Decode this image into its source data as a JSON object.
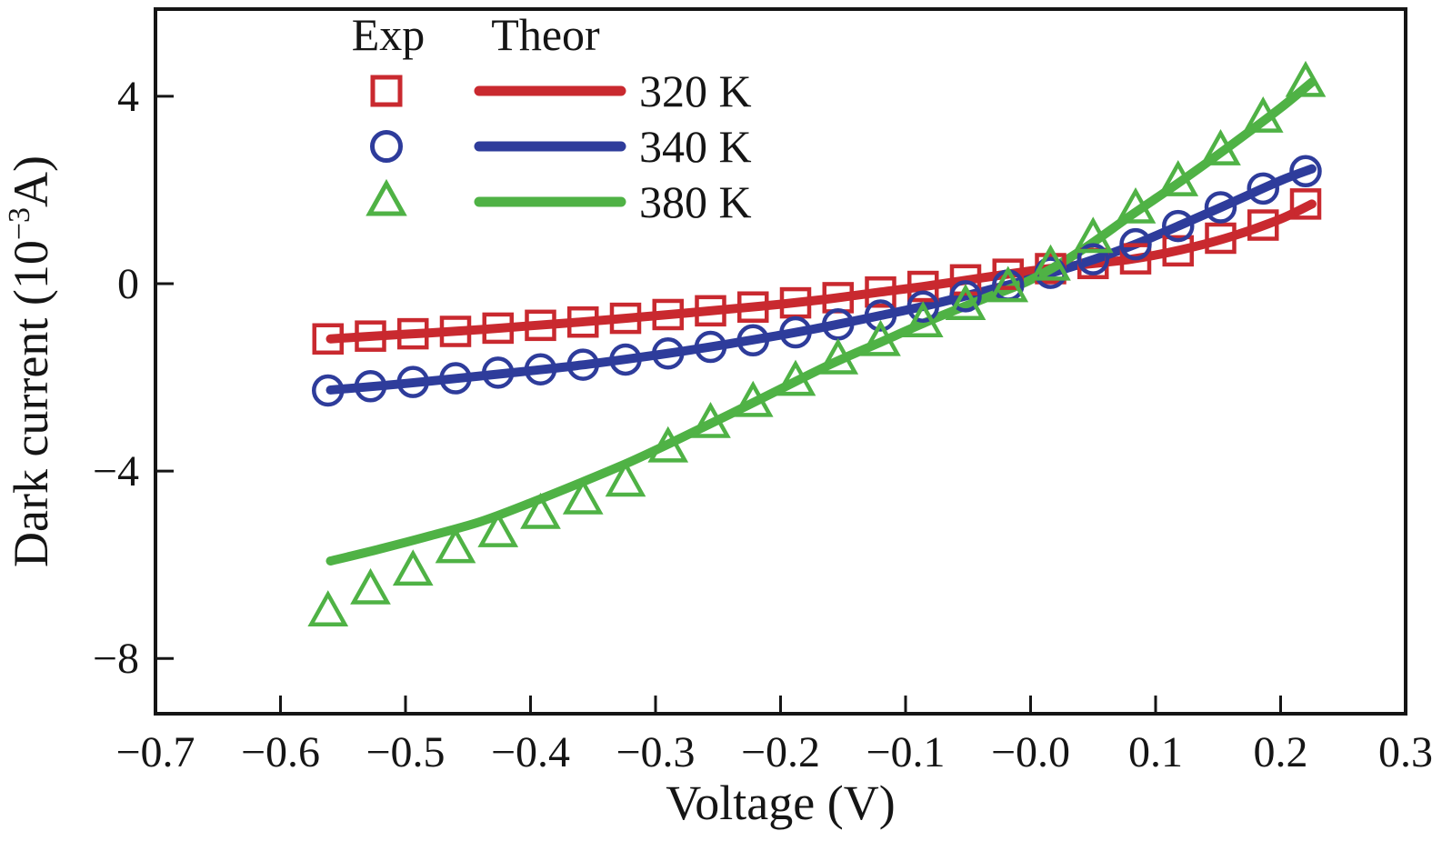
{
  "figure": {
    "background": "#ffffff",
    "axis_color": "#151515"
  },
  "chart_data": {
    "type": "line",
    "title": "",
    "xlabel": "Voltage (V)",
    "ylabel_prefix": "Dark current (10",
    "ylabel_sup": "−3",
    "ylabel_suffix": "A)",
    "xlim": [
      -0.7,
      0.3
    ],
    "ylim": [
      -9.18,
      5.86
    ],
    "grid": false,
    "x_ticks": [
      -0.7,
      -0.6,
      -0.5,
      -0.4,
      -0.3,
      -0.2,
      -0.1,
      0.0,
      0.1,
      0.2,
      0.3
    ],
    "x_tick_labels": [
      "−0.7",
      "−0.6",
      "−0.5",
      "−0.4",
      "−0.3",
      "−0.2",
      "−0.1",
      "−0.0",
      "0.1",
      "0.2",
      "0.3"
    ],
    "y_ticks": [
      4,
      0,
      -4,
      -8
    ],
    "y_tick_labels": [
      "4",
      "0",
      "−4",
      "−8"
    ],
    "legend": {
      "position": "upper-left",
      "exp_header": "Exp",
      "theor_header": "Theor",
      "entries": [
        {
          "label": "320 K",
          "marker": "square",
          "color": "#c9292f"
        },
        {
          "label": "340 K",
          "marker": "circle",
          "color": "#2e3c9b"
        },
        {
          "label": "380 K",
          "marker": "triangle",
          "color": "#4fb245"
        }
      ]
    },
    "series": [
      {
        "name": "320 K theory",
        "kind": "line",
        "color": "#c9292f",
        "x": [
          -0.56,
          -0.52,
          -0.48,
          -0.44,
          -0.4,
          -0.36,
          -0.32,
          -0.28,
          -0.24,
          -0.2,
          -0.16,
          -0.12,
          -0.08,
          -0.04,
          0.0,
          0.04,
          0.08,
          0.12,
          0.16,
          0.2,
          0.225
        ],
        "y": [
          -1.18,
          -1.11,
          -1.05,
          -0.98,
          -0.9,
          -0.82,
          -0.73,
          -0.64,
          -0.54,
          -0.44,
          -0.32,
          -0.18,
          -0.04,
          0.12,
          0.27,
          0.4,
          0.52,
          0.72,
          1.0,
          1.38,
          1.7
        ]
      },
      {
        "name": "340 K theory",
        "kind": "line",
        "color": "#2e3c9b",
        "x": [
          -0.56,
          -0.52,
          -0.48,
          -0.44,
          -0.4,
          -0.36,
          -0.32,
          -0.28,
          -0.24,
          -0.2,
          -0.16,
          -0.12,
          -0.08,
          -0.04,
          0.0,
          0.04,
          0.08,
          0.12,
          0.16,
          0.2,
          0.225
        ],
        "y": [
          -2.27,
          -2.18,
          -2.08,
          -1.97,
          -1.86,
          -1.74,
          -1.6,
          -1.45,
          -1.28,
          -1.1,
          -0.9,
          -0.68,
          -0.45,
          -0.18,
          0.1,
          0.42,
          0.8,
          1.25,
          1.72,
          2.2,
          2.45
        ]
      },
      {
        "name": "380 K theory",
        "kind": "line",
        "color": "#4fb245",
        "x": [
          -0.56,
          -0.52,
          -0.48,
          -0.44,
          -0.4,
          -0.36,
          -0.32,
          -0.28,
          -0.24,
          -0.2,
          -0.16,
          -0.12,
          -0.08,
          -0.04,
          0.0,
          0.04,
          0.08,
          0.12,
          0.16,
          0.2,
          0.225
        ],
        "y": [
          -5.92,
          -5.66,
          -5.38,
          -5.08,
          -4.68,
          -4.25,
          -3.8,
          -3.3,
          -2.78,
          -2.25,
          -1.72,
          -1.25,
          -0.78,
          -0.35,
          0.08,
          0.7,
          1.45,
          2.18,
          2.95,
          3.75,
          4.3
        ]
      },
      {
        "name": "320 K exp",
        "kind": "markers",
        "marker": "square",
        "color": "#c9292f",
        "x": [
          -0.562,
          -0.528,
          -0.494,
          -0.46,
          -0.426,
          -0.392,
          -0.358,
          -0.324,
          -0.29,
          -0.256,
          -0.222,
          -0.188,
          -0.154,
          -0.12,
          -0.086,
          -0.052,
          -0.018,
          0.016,
          0.05,
          0.084,
          0.118,
          0.152,
          0.186,
          0.22
        ],
        "y": [
          -1.18,
          -1.12,
          -1.07,
          -1.02,
          -0.95,
          -0.89,
          -0.82,
          -0.74,
          -0.66,
          -0.58,
          -0.5,
          -0.41,
          -0.3,
          -0.18,
          -0.06,
          0.08,
          0.2,
          0.32,
          0.43,
          0.53,
          0.7,
          0.97,
          1.25,
          1.7
        ]
      },
      {
        "name": "340 K exp",
        "kind": "markers",
        "marker": "circle",
        "color": "#2e3c9b",
        "x": [
          -0.562,
          -0.528,
          -0.494,
          -0.46,
          -0.426,
          -0.392,
          -0.358,
          -0.324,
          -0.29,
          -0.256,
          -0.222,
          -0.188,
          -0.154,
          -0.12,
          -0.086,
          -0.052,
          -0.018,
          0.016,
          0.05,
          0.084,
          0.118,
          0.152,
          0.186,
          0.22
        ],
        "y": [
          -2.28,
          -2.19,
          -2.1,
          -2.02,
          -1.9,
          -1.83,
          -1.73,
          -1.62,
          -1.49,
          -1.35,
          -1.21,
          -1.04,
          -0.87,
          -0.68,
          -0.49,
          -0.27,
          -0.04,
          0.23,
          0.52,
          0.84,
          1.23,
          1.63,
          2.03,
          2.4
        ]
      },
      {
        "name": "380 K exp",
        "kind": "markers",
        "marker": "triangle",
        "color": "#4fb245",
        "x": [
          -0.562,
          -0.528,
          -0.494,
          -0.46,
          -0.426,
          -0.392,
          -0.358,
          -0.324,
          -0.29,
          -0.256,
          -0.222,
          -0.188,
          -0.154,
          -0.12,
          -0.086,
          -0.052,
          -0.018,
          0.016,
          0.05,
          0.084,
          0.118,
          0.152,
          0.186,
          0.22
        ],
        "y": [
          -7.02,
          -6.55,
          -6.15,
          -5.67,
          -5.33,
          -4.94,
          -4.63,
          -4.25,
          -3.52,
          -3.0,
          -2.55,
          -2.1,
          -1.64,
          -1.25,
          -0.85,
          -0.48,
          -0.1,
          0.36,
          0.95,
          1.58,
          2.16,
          2.82,
          3.52,
          4.28
        ]
      }
    ]
  }
}
